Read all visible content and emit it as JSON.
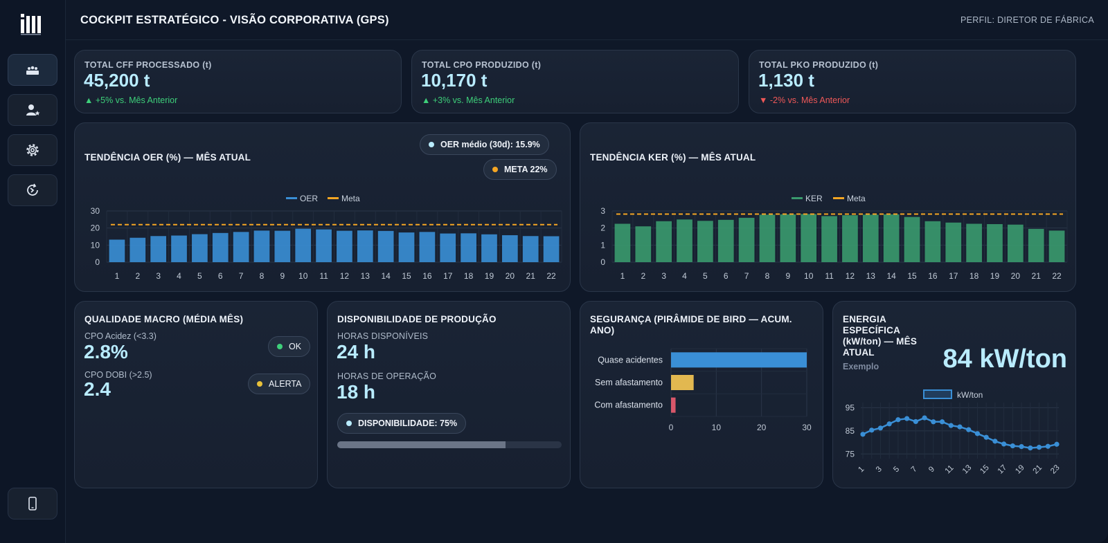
{
  "header": {
    "title": "COCKPIT ESTRATÉGICO - VISÃO CORPORATIVA (GPS)",
    "profile": "PERFIL: DIRETOR DE FÁBRICA"
  },
  "sidebar": {
    "items": [
      {
        "icon": "factory-icon",
        "active": true
      },
      {
        "icon": "user-star-icon",
        "active": false
      },
      {
        "icon": "gear-icon",
        "active": false
      },
      {
        "icon": "clock-refresh-icon",
        "active": false
      }
    ],
    "bottom_icon": "mobile-phone-icon"
  },
  "kpis": [
    {
      "label": "TOTAL CFF PROCESSADO (t)",
      "value": "45,200 t",
      "delta": "▲ +5% vs. Mês Anterior",
      "trend": "up"
    },
    {
      "label": "TOTAL CPO PRODUZIDO (t)",
      "value": "10,170 t",
      "delta": "▲ +3% vs. Mês Anterior",
      "trend": "up"
    },
    {
      "label": "TOTAL PKO PRODUZIDO (t)",
      "value": "1,130 t",
      "delta": "▼ -2% vs. Mês Anterior",
      "trend": "down"
    }
  ],
  "oer": {
    "title": "TENDÊNCIA OER (%) — MÊS ATUAL",
    "pill_avg": "OER médio (30d): 15.9%",
    "pill_meta": "META 22%"
  },
  "ker": {
    "title": "TENDÊNCIA KER (%) — MÊS ATUAL"
  },
  "quality": {
    "title": "QUALIDADE MACRO (MÉDIA MÊS)",
    "acid_label": "CPO Acidez (<3.3)",
    "acid_value": "2.8%",
    "acid_status": "OK",
    "dobi_label": "CPO DOBI (>2.5)",
    "dobi_value": "2.4",
    "dobi_status": "ALERTA"
  },
  "availability": {
    "title": "DISPONIBILIDADE DE PRODUÇÃO",
    "avail_label": "HORAS DISPONÍVEIS",
    "avail_value": "24 h",
    "op_label": "HORAS DE OPERAÇÃO",
    "op_value": "18 h",
    "pill": "DISPONIBILIDADE: 75%",
    "progress": 0.75
  },
  "safety": {
    "title": "SEGURANÇA (PIRÂMIDE DE BIRD — ACUM. ANO)"
  },
  "energy": {
    "title": "ENERGIA ESPECÍFICA (kW/ton) — MÊS ATUAL",
    "subtitle": "Exemplo",
    "value": "84 kW/ton"
  },
  "colors": {
    "oer_bar": "#3a8fd6",
    "ker_bar": "#3a9a6e",
    "meta": "#f5a623",
    "ok": "#3ecf7a",
    "alert": "#e8c13a",
    "kpi_value": "#b9ecff"
  },
  "chart_data": [
    {
      "id": "oer",
      "type": "bar",
      "categories": [
        "1",
        "2",
        "3",
        "4",
        "5",
        "6",
        "7",
        "8",
        "9",
        "10",
        "11",
        "12",
        "13",
        "14",
        "15",
        "16",
        "17",
        "18",
        "19",
        "20",
        "21",
        "22"
      ],
      "series": [
        {
          "name": "OER",
          "values": [
            13.2,
            14.3,
            15.3,
            15.6,
            16.4,
            17.1,
            17.7,
            18.5,
            18.4,
            19.6,
            19.2,
            18.4,
            18.6,
            18.3,
            17.4,
            17.7,
            16.8,
            16.9,
            16.3,
            15.8,
            15.3,
            15.2
          ]
        },
        {
          "name": "Meta",
          "type": "line",
          "values": [
            22,
            22,
            22,
            22,
            22,
            22,
            22,
            22,
            22,
            22,
            22,
            22,
            22,
            22,
            22,
            22,
            22,
            22,
            22,
            22,
            22,
            22
          ]
        }
      ],
      "ylim": [
        0,
        30
      ],
      "yticks": [
        0,
        10,
        20,
        30
      ],
      "legend": "top-center",
      "grid": true
    },
    {
      "id": "ker",
      "type": "bar",
      "categories": [
        "1",
        "2",
        "3",
        "4",
        "5",
        "6",
        "7",
        "8",
        "9",
        "10",
        "11",
        "12",
        "13",
        "14",
        "15",
        "16",
        "17",
        "18",
        "19",
        "20",
        "21",
        "22"
      ],
      "series": [
        {
          "name": "KER",
          "values": [
            2.25,
            2.1,
            2.4,
            2.5,
            2.42,
            2.48,
            2.6,
            2.78,
            2.8,
            2.82,
            2.7,
            2.75,
            2.78,
            2.8,
            2.65,
            2.4,
            2.32,
            2.25,
            2.23,
            2.2,
            1.95,
            1.85
          ]
        },
        {
          "name": "Meta",
          "type": "line",
          "values": [
            2.82,
            2.82,
            2.82,
            2.82,
            2.82,
            2.82,
            2.82,
            2.82,
            2.82,
            2.82,
            2.82,
            2.82,
            2.82,
            2.82,
            2.82,
            2.82,
            2.82,
            2.82,
            2.82,
            2.82,
            2.82,
            2.82
          ]
        }
      ],
      "ylim": [
        0,
        3
      ],
      "yticks": [
        0,
        1,
        2,
        3
      ],
      "legend": "top-center",
      "grid": true
    },
    {
      "id": "safety",
      "type": "bar",
      "orientation": "horizontal",
      "categories": [
        "Quase acidentes",
        "Sem afastamento",
        "Com afastamento"
      ],
      "values": [
        30,
        5,
        1
      ],
      "colors": [
        "#3a8fd6",
        "#e2b850",
        "#d8576a"
      ],
      "xlim": [
        0,
        30
      ],
      "xticks": [
        0,
        10,
        20,
        30
      ],
      "grid": true
    },
    {
      "id": "energy",
      "type": "line",
      "x": [
        1,
        2,
        3,
        4,
        5,
        6,
        7,
        8,
        9,
        10,
        11,
        12,
        13,
        14,
        15,
        16,
        17,
        18,
        19,
        20,
        21,
        22,
        23
      ],
      "xticks": [
        "1",
        "3",
        "5",
        "7",
        "9",
        "11",
        "13",
        "15",
        "17",
        "19",
        "21",
        "23"
      ],
      "series": [
        {
          "name": "kW/ton",
          "values": [
            83.5,
            85.3,
            86.2,
            88.0,
            89.8,
            90.3,
            89.0,
            90.6,
            88.9,
            88.9,
            87.3,
            86.7,
            85.5,
            83.8,
            82.2,
            80.5,
            79.3,
            78.5,
            78.2,
            77.6,
            77.9,
            78.3,
            79.2
          ]
        }
      ],
      "ylim": [
        73,
        96
      ],
      "yticks": [
        75,
        85,
        95
      ],
      "legend": "top-center",
      "grid": true
    }
  ]
}
